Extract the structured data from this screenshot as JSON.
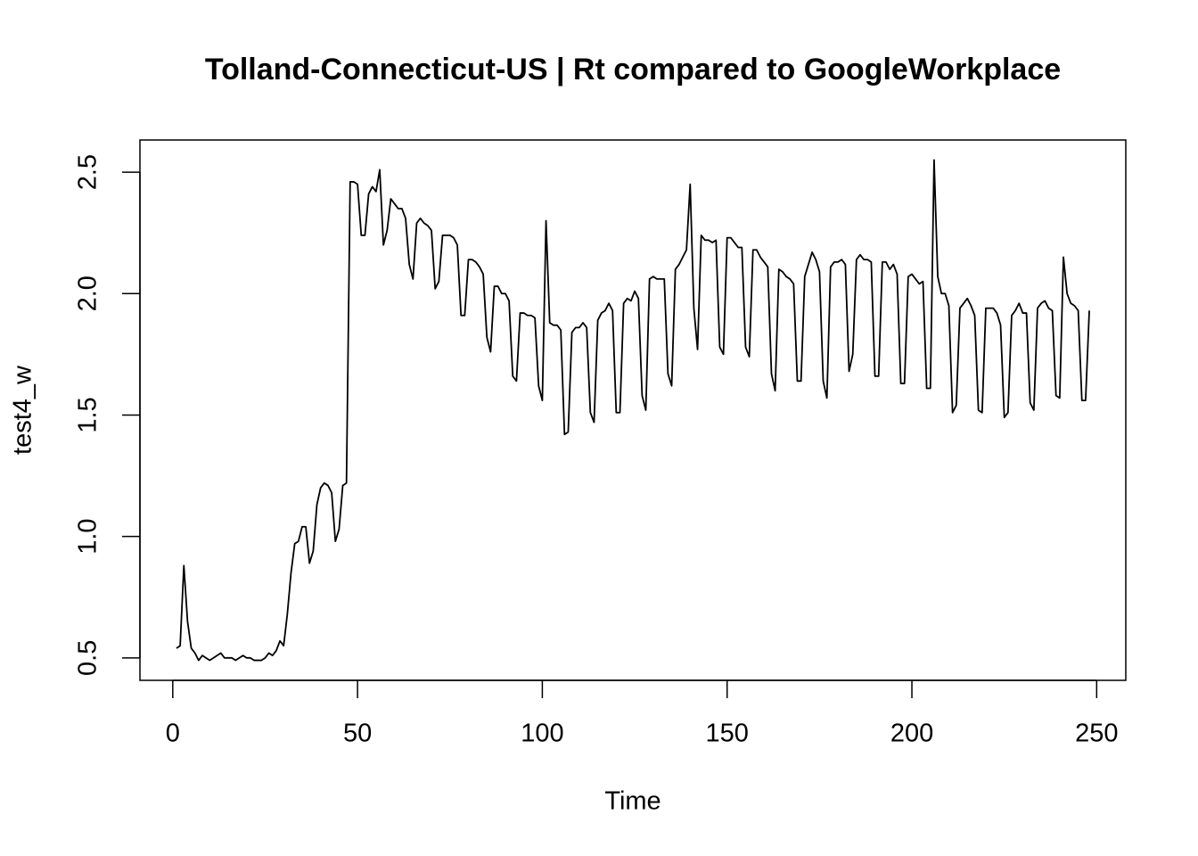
{
  "chart_data": {
    "type": "line",
    "title": "Tolland-Connecticut-US | Rt compared to GoogleWorkplace",
    "xlabel": "Time",
    "ylabel": "test4_w",
    "color": "#000000",
    "x": [
      1,
      2,
      3,
      4,
      5,
      6,
      7,
      8,
      9,
      10,
      11,
      12,
      13,
      14,
      15,
      16,
      17,
      18,
      19,
      20,
      21,
      22,
      23,
      24,
      25,
      26,
      27,
      28,
      29,
      30,
      31,
      32,
      33,
      34,
      35,
      36,
      37,
      38,
      39,
      40,
      41,
      42,
      43,
      44,
      45,
      46,
      47,
      48,
      49,
      50,
      51,
      52,
      53,
      54,
      55,
      56,
      57,
      58,
      59,
      60,
      61,
      62,
      63,
      64,
      65,
      66,
      67,
      68,
      69,
      70,
      71,
      72,
      73,
      74,
      75,
      76,
      77,
      78,
      79,
      80,
      81,
      82,
      83,
      84,
      85,
      86,
      87,
      88,
      89,
      90,
      91,
      92,
      93,
      94,
      95,
      96,
      97,
      98,
      99,
      100,
      101,
      102,
      103,
      104,
      105,
      106,
      107,
      108,
      109,
      110,
      111,
      112,
      113,
      114,
      115,
      116,
      117,
      118,
      119,
      120,
      121,
      122,
      123,
      124,
      125,
      126,
      127,
      128,
      129,
      130,
      131,
      132,
      133,
      134,
      135,
      136,
      137,
      138,
      139,
      140,
      141,
      142,
      143,
      144,
      145,
      146,
      147,
      148,
      149,
      150,
      151,
      152,
      153,
      154,
      155,
      156,
      157,
      158,
      159,
      160,
      161,
      162,
      163,
      164,
      165,
      166,
      167,
      168,
      169,
      170,
      171,
      172,
      173,
      174,
      175,
      176,
      177,
      178,
      179,
      180,
      181,
      182,
      183,
      184,
      185,
      186,
      187,
      188,
      189,
      190,
      191,
      192,
      193,
      194,
      195,
      196,
      197,
      198,
      199,
      200,
      201,
      202,
      203,
      204,
      205,
      206,
      207,
      208,
      209,
      210,
      211,
      212,
      213,
      214,
      215,
      216,
      217,
      218,
      219,
      220,
      221,
      222,
      223,
      224,
      225,
      226,
      227,
      228,
      229,
      230,
      231,
      232,
      233,
      234,
      235,
      236,
      237,
      238,
      239,
      240,
      241,
      242,
      243,
      244,
      245,
      246,
      247,
      248
    ],
    "values": [
      0.54,
      0.55,
      0.88,
      0.65,
      0.54,
      0.52,
      0.49,
      0.51,
      0.5,
      0.49,
      0.5,
      0.51,
      0.52,
      0.5,
      0.5,
      0.5,
      0.49,
      0.5,
      0.51,
      0.5,
      0.5,
      0.49,
      0.49,
      0.49,
      0.5,
      0.52,
      0.51,
      0.53,
      0.57,
      0.55,
      0.68,
      0.85,
      0.97,
      0.98,
      1.04,
      1.04,
      0.89,
      0.94,
      1.13,
      1.2,
      1.22,
      1.21,
      1.18,
      0.98,
      1.03,
      1.21,
      1.22,
      2.46,
      2.46,
      2.45,
      2.24,
      2.24,
      2.41,
      2.44,
      2.42,
      2.51,
      2.2,
      2.26,
      2.39,
      2.37,
      2.35,
      2.35,
      2.31,
      2.12,
      2.06,
      2.29,
      2.31,
      2.29,
      2.28,
      2.26,
      2.02,
      2.05,
      2.24,
      2.24,
      2.24,
      2.23,
      2.2,
      1.91,
      1.91,
      2.14,
      2.14,
      2.13,
      2.11,
      2.08,
      1.82,
      1.76,
      2.03,
      2.03,
      2.0,
      2.0,
      1.97,
      1.66,
      1.64,
      1.92,
      1.92,
      1.91,
      1.91,
      1.9,
      1.62,
      1.56,
      2.3,
      1.88,
      1.87,
      1.87,
      1.85,
      1.42,
      1.43,
      1.84,
      1.86,
      1.86,
      1.88,
      1.86,
      1.51,
      1.47,
      1.89,
      1.92,
      1.93,
      1.96,
      1.93,
      1.51,
      1.51,
      1.96,
      1.98,
      1.97,
      2.01,
      1.98,
      1.58,
      1.52,
      2.06,
      2.07,
      2.06,
      2.06,
      2.06,
      1.67,
      1.62,
      2.1,
      2.12,
      2.15,
      2.18,
      2.45,
      1.94,
      1.77,
      2.24,
      2.22,
      2.22,
      2.21,
      2.22,
      1.78,
      1.75,
      2.23,
      2.23,
      2.21,
      2.19,
      2.19,
      1.78,
      1.74,
      2.18,
      2.18,
      2.15,
      2.13,
      2.11,
      1.67,
      1.6,
      2.1,
      2.09,
      2.07,
      2.06,
      2.04,
      1.64,
      1.64,
      2.07,
      2.12,
      2.17,
      2.14,
      2.09,
      1.64,
      1.57,
      2.11,
      2.13,
      2.13,
      2.14,
      2.12,
      1.68,
      1.75,
      2.14,
      2.16,
      2.14,
      2.14,
      2.13,
      1.66,
      1.66,
      2.13,
      2.13,
      2.1,
      2.12,
      2.08,
      1.63,
      1.63,
      2.07,
      2.08,
      2.06,
      2.04,
      2.05,
      1.61,
      1.61,
      2.55,
      2.07,
      2.0,
      2.0,
      1.95,
      1.51,
      1.54,
      1.94,
      1.96,
      1.98,
      1.95,
      1.91,
      1.52,
      1.51,
      1.94,
      1.94,
      1.94,
      1.92,
      1.87,
      1.49,
      1.51,
      1.91,
      1.93,
      1.96,
      1.92,
      1.92,
      1.55,
      1.52,
      1.94,
      1.96,
      1.97,
      1.94,
      1.93,
      1.58,
      1.57,
      2.15,
      2.0,
      1.96,
      1.95,
      1.93,
      1.56,
      1.56,
      1.93
    ],
    "xlim": [
      -8.88,
      257.88
    ],
    "ylim": [
      0.4076,
      2.6324
    ],
    "xticks": [
      0,
      50,
      100,
      150,
      200,
      250
    ],
    "yticks": [
      {
        "value": 0.5,
        "label": "0.5"
      },
      {
        "value": 1.0,
        "label": "1.0"
      },
      {
        "value": 1.5,
        "label": "1.5"
      },
      {
        "value": 2.0,
        "label": "2.0"
      },
      {
        "value": 2.5,
        "label": "2.5"
      }
    ]
  }
}
